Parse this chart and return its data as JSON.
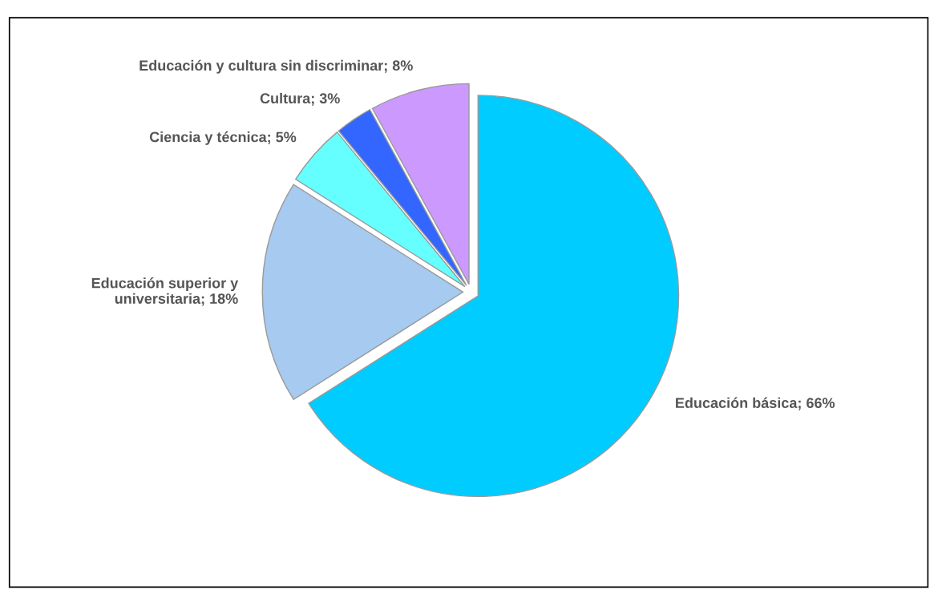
{
  "chart_data": {
    "type": "pie",
    "categories": [
      "Educación básica",
      "Educación superior y universitaria",
      "Ciencia y técnica",
      "Cultura",
      "Educación y cultura sin discriminar"
    ],
    "values": [
      66,
      18,
      5,
      3,
      8
    ],
    "value_labels": [
      "66%",
      "18%",
      "5%",
      "3%",
      "8%"
    ],
    "colors": [
      "#00ccff",
      "#a6caf0",
      "#66ffff",
      "#3366ff",
      "#cc99ff"
    ],
    "legend": false
  }
}
